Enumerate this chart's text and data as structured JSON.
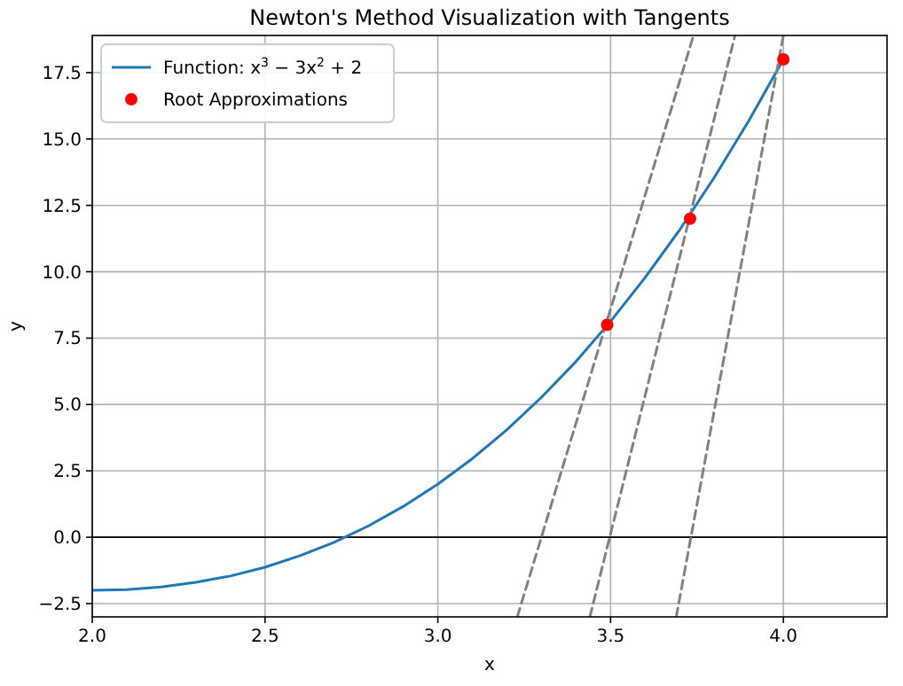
{
  "chart_data": {
    "type": "line",
    "title": "Newton's Method Visualization with Tangents",
    "xlabel": "x",
    "ylabel": "y",
    "xlim": [
      2.0,
      4.3
    ],
    "ylim": [
      -3.0,
      18.9
    ],
    "xticks": [
      {
        "value": 2.0,
        "label": "2.0"
      },
      {
        "value": 2.5,
        "label": "2.5"
      },
      {
        "value": 3.0,
        "label": "3.0"
      },
      {
        "value": 3.5,
        "label": "3.5"
      },
      {
        "value": 4.0,
        "label": "4.0"
      }
    ],
    "yticks": [
      {
        "value": -2.5,
        "label": "−2.5"
      },
      {
        "value": 0,
        "label": "0.0"
      },
      {
        "value": 2.5,
        "label": "2.5"
      },
      {
        "value": 5,
        "label": "5.0"
      },
      {
        "value": 7.5,
        "label": "7.5"
      },
      {
        "value": 10,
        "label": "10.0"
      },
      {
        "value": 12.5,
        "label": "12.5"
      },
      {
        "value": 15,
        "label": "15.0"
      },
      {
        "value": 17.5,
        "label": "17.5"
      }
    ],
    "grid": true,
    "legend": "top left",
    "ref_lines": [
      {
        "axis": "y",
        "value": 0,
        "color": "#000000"
      }
    ],
    "series": [
      {
        "name": "Function: x$^{3}$ − 3x$^{2}$ + 2",
        "color": "#1f77b4",
        "line_style": "solid",
        "x": [
          2.0,
          2.1,
          2.2,
          2.3,
          2.4,
          2.5,
          2.6,
          2.7,
          2.8,
          2.9,
          3.0,
          3.1,
          3.2,
          3.3,
          3.4,
          3.5,
          3.6,
          3.7,
          3.8,
          3.9,
          4.0
        ],
        "values": [
          -2.0,
          -1.97,
          -1.87,
          -1.7,
          -1.46,
          -1.13,
          -0.7,
          -0.19,
          0.43,
          1.16,
          2.0,
          2.96,
          4.05,
          5.27,
          6.62,
          8.13,
          9.78,
          11.58,
          13.55,
          15.69,
          18.0
        ]
      },
      {
        "type": "line",
        "color": "#808080",
        "line_style": "dashed",
        "x": [
          3.23,
          3.74
        ],
        "values": [
          -3.0,
          18.9
        ]
      },
      {
        "type": "line",
        "color": "#808080",
        "line_style": "dashed",
        "x": [
          3.44,
          3.86
        ],
        "values": [
          -3.0,
          18.9
        ]
      },
      {
        "type": "line",
        "color": "#808080",
        "line_style": "dashed",
        "x": [
          3.69,
          4.0
        ],
        "values": [
          -3.0,
          18.9
        ]
      },
      {
        "type": "scatter",
        "name": "Root Approximations",
        "color": "#ff0000",
        "marker": "circle",
        "x": [
          3.49,
          3.73,
          4.0
        ],
        "values": [
          8.0,
          12.0,
          18.0
        ]
      }
    ]
  }
}
